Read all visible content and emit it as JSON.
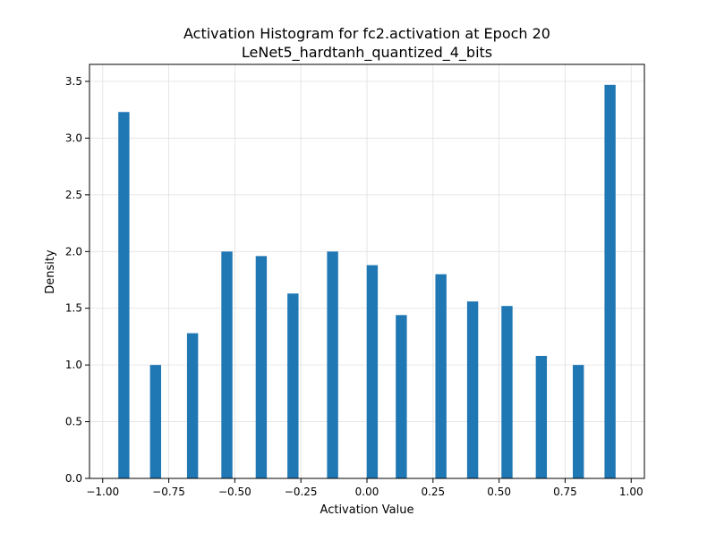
{
  "chart_data": {
    "type": "bar",
    "title": "Activation Histogram for fc2.activation at Epoch 20",
    "subtitle": "LeNet5_hardtanh_quantized_4_bits",
    "xlabel": "Activation Value",
    "ylabel": "Density",
    "xlim": [
      -1.05,
      1.05
    ],
    "ylim": [
      0,
      3.65
    ],
    "grid": true,
    "bar_width": 0.042,
    "x_ticks": [
      {
        "value": -1.0,
        "label": "−1.00"
      },
      {
        "value": -0.75,
        "label": "−0.75"
      },
      {
        "value": -0.5,
        "label": "−0.50"
      },
      {
        "value": -0.25,
        "label": "−0.25"
      },
      {
        "value": 0.0,
        "label": "0.00"
      },
      {
        "value": 0.25,
        "label": "0.25"
      },
      {
        "value": 0.5,
        "label": "0.50"
      },
      {
        "value": 0.75,
        "label": "0.75"
      },
      {
        "value": 1.0,
        "label": "1.00"
      }
    ],
    "y_ticks": [
      {
        "value": 0.0,
        "label": "0.0"
      },
      {
        "value": 0.5,
        "label": "0.5"
      },
      {
        "value": 1.0,
        "label": "1.0"
      },
      {
        "value": 1.5,
        "label": "1.5"
      },
      {
        "value": 2.0,
        "label": "2.0"
      },
      {
        "value": 2.5,
        "label": "2.5"
      },
      {
        "value": 3.0,
        "label": "3.0"
      },
      {
        "value": 3.5,
        "label": "3.5"
      }
    ],
    "bars": [
      {
        "x": -0.92,
        "y": 3.23
      },
      {
        "x": -0.8,
        "y": 1.0
      },
      {
        "x": -0.66,
        "y": 1.28
      },
      {
        "x": -0.53,
        "y": 2.0
      },
      {
        "x": -0.4,
        "y": 1.96
      },
      {
        "x": -0.28,
        "y": 1.63
      },
      {
        "x": -0.13,
        "y": 2.0
      },
      {
        "x": 0.02,
        "y": 1.88
      },
      {
        "x": 0.13,
        "y": 1.44
      },
      {
        "x": 0.28,
        "y": 1.8
      },
      {
        "x": 0.4,
        "y": 1.56
      },
      {
        "x": 0.53,
        "y": 1.52
      },
      {
        "x": 0.66,
        "y": 1.08
      },
      {
        "x": 0.8,
        "y": 1.0
      },
      {
        "x": 0.92,
        "y": 3.47
      }
    ],
    "bar_color": "#1f77b4",
    "grid_color": "#e0e0e0"
  }
}
